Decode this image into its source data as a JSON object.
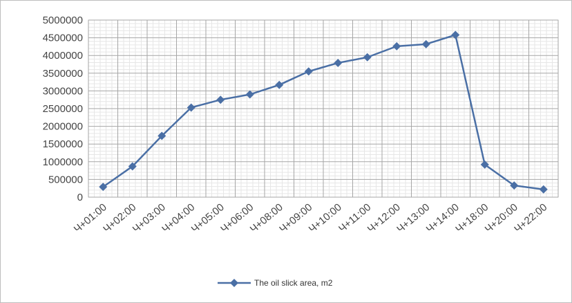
{
  "chart_data": {
    "type": "line",
    "title": "",
    "xlabel": "",
    "ylabel": "",
    "categories": [
      "Ч+01:00",
      "Ч+02:00",
      "Ч+03:00",
      "Ч+04:00",
      "Ч+05:00",
      "Ч+06:00",
      "Ч+08:00",
      "Ч+09:00",
      "Ч+10:00",
      "Ч+11:00",
      "Ч+12:00",
      "Ч+13:00",
      "Ч+14:00",
      "Ч+18:00",
      "Ч+20:00",
      "Ч+22:00"
    ],
    "series": [
      {
        "name": "The oil slick area, m2",
        "values": [
          290000,
          870000,
          1730000,
          2530000,
          2750000,
          2900000,
          3170000,
          3550000,
          3790000,
          3950000,
          4260000,
          4320000,
          4580000,
          920000,
          330000,
          220000
        ],
        "color": "#4a6fa5",
        "marker": "diamond"
      }
    ],
    "ylim": [
      0,
      5000000
    ],
    "yticks": [
      "0",
      "500000",
      "1000000",
      "1500000",
      "2000000",
      "2500000",
      "3000000",
      "3500000",
      "4000000",
      "4500000",
      "5000000"
    ],
    "grid": true,
    "legend_position": "bottom"
  }
}
